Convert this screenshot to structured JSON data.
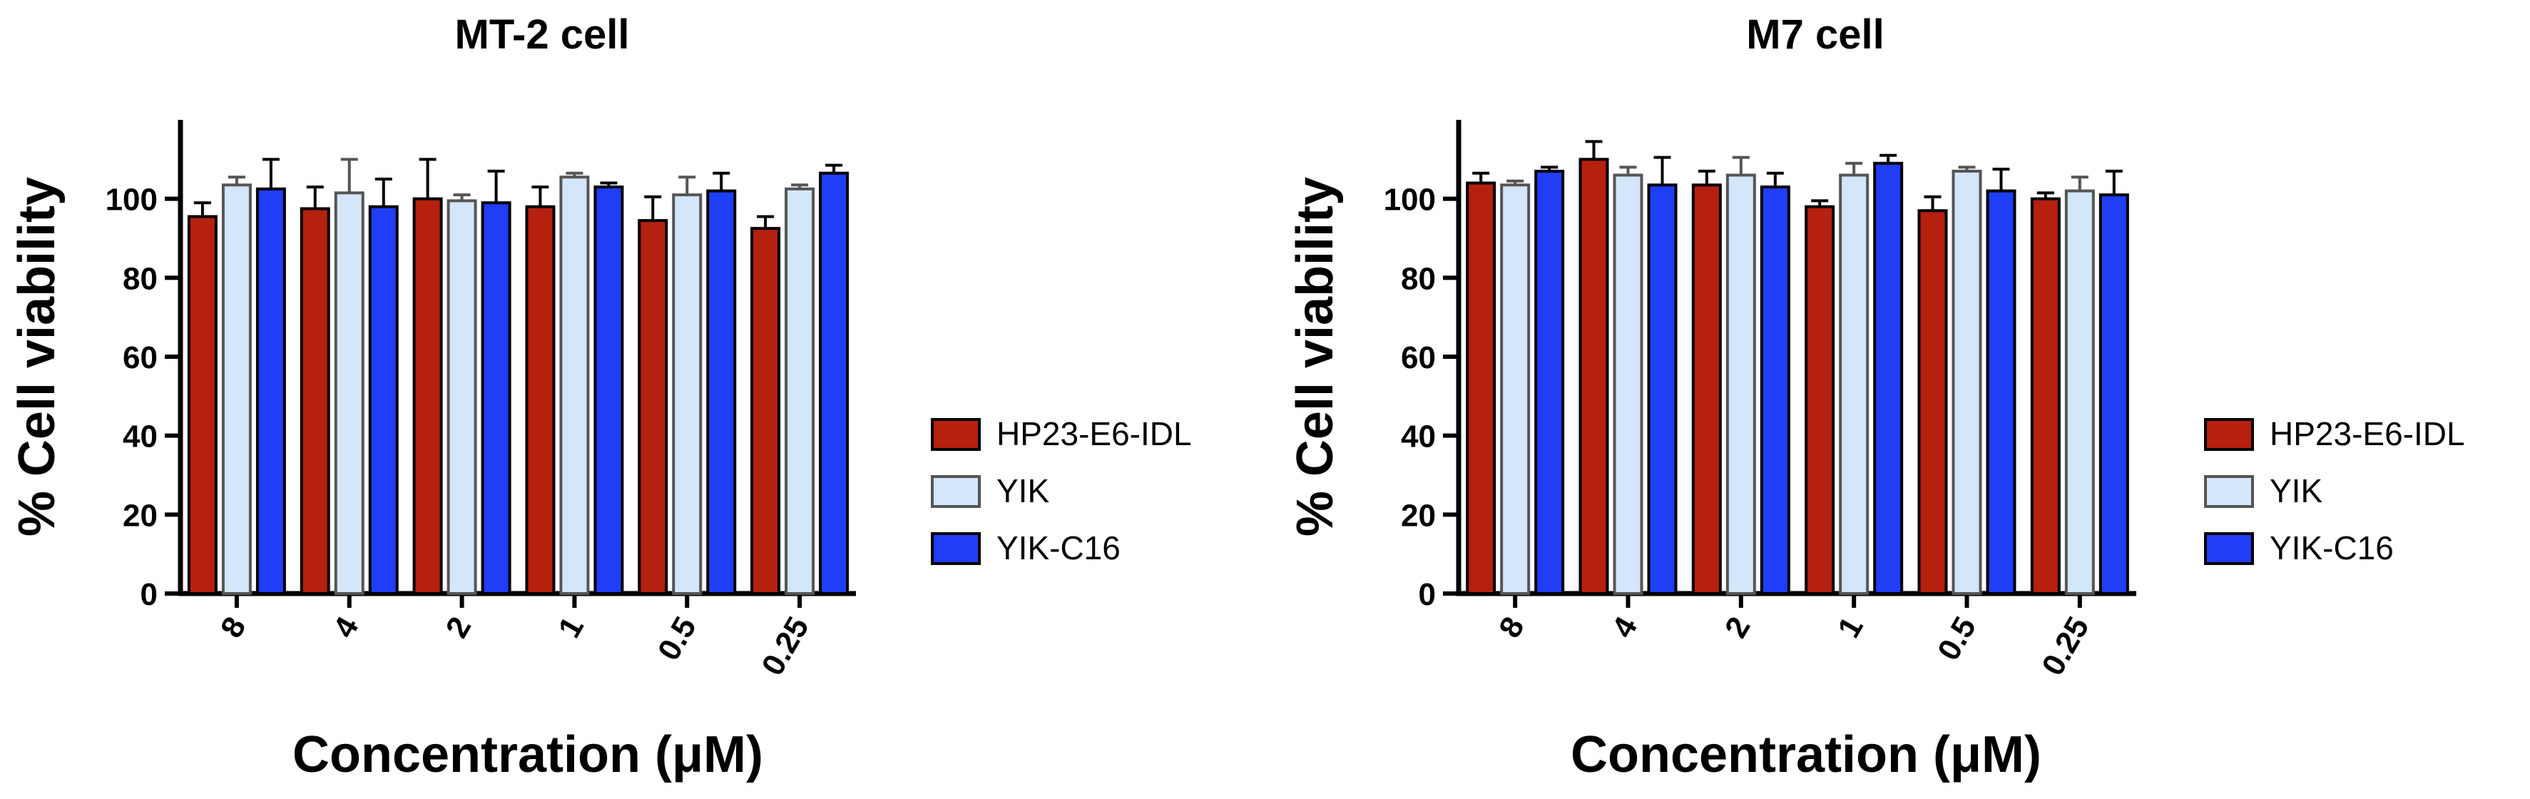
{
  "chart_data": [
    {
      "type": "bar",
      "title": "MT-2 cell",
      "xlabel": "Concentration (μM)",
      "ylabel": "% Cell viability",
      "ylim": [
        0,
        120
      ],
      "yticks": [
        0,
        20,
        40,
        60,
        80,
        100
      ],
      "categories": [
        "8",
        "4",
        "2",
        "1",
        "0.5",
        "0.25"
      ],
      "legend_position": "right",
      "series": [
        {
          "name": "HP23-E6-IDL",
          "color": "#b5200f",
          "values": [
            95.5,
            97.5,
            100,
            98,
            94.5,
            92.5
          ],
          "errors": [
            3.5,
            5.5,
            10,
            5,
            6,
            3
          ]
        },
        {
          "name": "YIK",
          "color": "#d4e6fa",
          "values": [
            103.5,
            101.5,
            99.5,
            105.5,
            101,
            102.5
          ],
          "errors": [
            2,
            8.5,
            1.5,
            1,
            4.5,
            1
          ]
        },
        {
          "name": "YIK-C16",
          "color": "#1f3ef5",
          "values": [
            102.5,
            98,
            99,
            103,
            102,
            106.5
          ],
          "errors": [
            7.5,
            7,
            8,
            1,
            4.5,
            2
          ]
        }
      ]
    },
    {
      "type": "bar",
      "title": "M7 cell",
      "xlabel": "Concentration (μM)",
      "ylabel": "% Cell viability",
      "ylim": [
        0,
        120
      ],
      "yticks": [
        0,
        20,
        40,
        60,
        80,
        100
      ],
      "categories": [
        "8",
        "4",
        "2",
        "1",
        "0.5",
        "0.25"
      ],
      "legend_position": "right",
      "series": [
        {
          "name": "HP23-E6-IDL",
          "color": "#b5200f",
          "values": [
            104,
            110,
            103.5,
            98,
            97,
            100
          ],
          "errors": [
            2.5,
            4.5,
            3.5,
            1.5,
            3.5,
            1.5
          ]
        },
        {
          "name": "YIK",
          "color": "#d4e6fa",
          "values": [
            103.5,
            106,
            106,
            106,
            107,
            102
          ],
          "errors": [
            1,
            2,
            4.5,
            3,
            1,
            3.5
          ]
        },
        {
          "name": "YIK-C16",
          "color": "#1f3ef5",
          "values": [
            107,
            103.5,
            103,
            109,
            102,
            101
          ],
          "errors": [
            1,
            7,
            3.5,
            2,
            5.5,
            6
          ]
        }
      ]
    }
  ]
}
